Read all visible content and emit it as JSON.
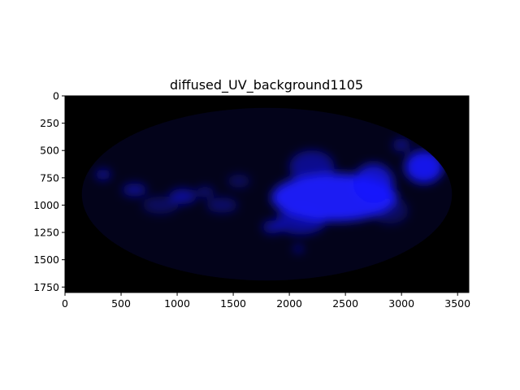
{
  "chart_data": {
    "type": "heatmap",
    "title": "diffused_UV_background1105",
    "xlabel": "",
    "ylabel": "",
    "xlim": [
      0,
      3600
    ],
    "ylim": [
      1800,
      0
    ],
    "x_ticks": [
      0,
      500,
      1000,
      1500,
      2000,
      2500,
      3000,
      3500
    ],
    "y_ticks": [
      0,
      250,
      500,
      750,
      1000,
      1250,
      1500,
      1750
    ],
    "grid": false,
    "legend": "none",
    "background_color": "#000000",
    "ellipse_color": "#03031a",
    "projection": "Mollweide all-sky (elliptical footprint)",
    "emission_color": "#1a1aff",
    "bright_regions": [
      {
        "x": 2400,
        "y": 930,
        "rx": 560,
        "ry": 220,
        "intensity": 0.95
      },
      {
        "x": 2750,
        "y": 800,
        "rx": 180,
        "ry": 180,
        "intensity": 0.75
      },
      {
        "x": 3200,
        "y": 650,
        "rx": 170,
        "ry": 150,
        "intensity": 0.9
      },
      {
        "x": 2100,
        "y": 1150,
        "rx": 220,
        "ry": 120,
        "intensity": 0.55
      },
      {
        "x": 2200,
        "y": 650,
        "rx": 200,
        "ry": 150,
        "intensity": 0.5
      },
      {
        "x": 1850,
        "y": 1200,
        "rx": 90,
        "ry": 60,
        "intensity": 0.55
      },
      {
        "x": 2080,
        "y": 1400,
        "rx": 40,
        "ry": 25,
        "intensity": 0.85
      },
      {
        "x": 1050,
        "y": 920,
        "rx": 120,
        "ry": 70,
        "intensity": 0.55
      },
      {
        "x": 620,
        "y": 860,
        "rx": 110,
        "ry": 60,
        "intensity": 0.5
      },
      {
        "x": 340,
        "y": 720,
        "rx": 70,
        "ry": 50,
        "intensity": 0.55
      },
      {
        "x": 1400,
        "y": 1000,
        "rx": 140,
        "ry": 70,
        "intensity": 0.35
      },
      {
        "x": 850,
        "y": 1000,
        "rx": 160,
        "ry": 80,
        "intensity": 0.3
      },
      {
        "x": 1250,
        "y": 880,
        "rx": 80,
        "ry": 50,
        "intensity": 0.4
      },
      {
        "x": 1550,
        "y": 780,
        "rx": 100,
        "ry": 60,
        "intensity": 0.3
      },
      {
        "x": 2900,
        "y": 1050,
        "rx": 160,
        "ry": 120,
        "intensity": 0.3
      },
      {
        "x": 3000,
        "y": 450,
        "rx": 80,
        "ry": 60,
        "intensity": 0.45
      }
    ]
  }
}
